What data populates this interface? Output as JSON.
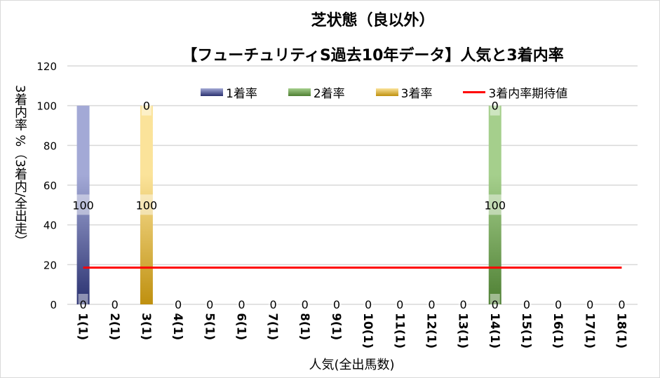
{
  "chart_data": {
    "type": "bar",
    "stacked": true,
    "title": "芝状態（良以外）",
    "subtitle": "【フューチュリティS過去10年データ】人気と3着内率",
    "xlabel": "人気(全出馬数)",
    "ylabel": "3着内率 %（3着内/全出走）",
    "ylim": [
      0,
      120
    ],
    "yticks": [
      "0",
      "20",
      "40",
      "60",
      "80",
      "100",
      "120"
    ],
    "categories": [
      "1(1)",
      "2(1)",
      "3(1)",
      "4(1)",
      "5(1)",
      "6(1)",
      "7(1)",
      "8(1)",
      "9(1)",
      "10(1)",
      "11(1)",
      "12(1)",
      "13(1)",
      "14(1)",
      "15(1)",
      "16(1)",
      "17(1)",
      "18(1)"
    ],
    "series": [
      {
        "name": "1着率",
        "color": "#3b4590",
        "values": [
          100,
          0,
          0,
          0,
          0,
          0,
          0,
          0,
          0,
          0,
          0,
          0,
          0,
          0,
          0,
          0,
          0,
          0
        ]
      },
      {
        "name": "2着率",
        "color": "#5f9a3f",
        "values": [
          0,
          0,
          0,
          0,
          0,
          0,
          0,
          0,
          0,
          0,
          0,
          0,
          0,
          100,
          0,
          0,
          0,
          0
        ]
      },
      {
        "name": "3着率",
        "color": "#d4a52a",
        "values": [
          0,
          0,
          100,
          0,
          0,
          0,
          0,
          0,
          0,
          0,
          0,
          0,
          0,
          0,
          0,
          0,
          0,
          0
        ]
      }
    ],
    "data_labels": [
      [
        {
          "text": "100",
          "at": 50
        },
        {
          "text": "0",
          "at": 0
        }
      ],
      [
        {
          "text": "0",
          "at": 0
        }
      ],
      [
        {
          "text": "0",
          "at": 100
        },
        {
          "text": "100",
          "at": 50
        }
      ],
      [
        {
          "text": "0",
          "at": 0
        }
      ],
      [
        {
          "text": "0",
          "at": 0
        }
      ],
      [
        {
          "text": "0",
          "at": 0
        }
      ],
      [
        {
          "text": "0",
          "at": 0
        }
      ],
      [
        {
          "text": "0",
          "at": 0
        }
      ],
      [
        {
          "text": "0",
          "at": 0
        }
      ],
      [
        {
          "text": "0",
          "at": 0
        }
      ],
      [
        {
          "text": "0",
          "at": 0
        }
      ],
      [
        {
          "text": "0",
          "at": 0
        }
      ],
      [
        {
          "text": "0",
          "at": 0
        }
      ],
      [
        {
          "text": "0",
          "at": 100
        },
        {
          "text": "100",
          "at": 50
        },
        {
          "text": "0",
          "at": 0
        }
      ],
      [
        {
          "text": "0",
          "at": 0
        }
      ],
      [
        {
          "text": "0",
          "at": 0
        }
      ],
      [
        {
          "text": "0",
          "at": 0
        }
      ],
      [
        {
          "text": "0",
          "at": 0
        }
      ]
    ],
    "line": {
      "name": "3着内率期待値",
      "color": "#ff0000",
      "value": 18.5
    },
    "grid": true,
    "legend": "top"
  }
}
